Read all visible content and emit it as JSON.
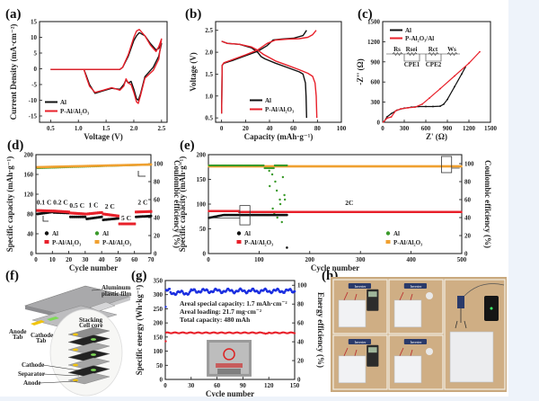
{
  "figure": {
    "background": "#eef3fa",
    "colors": {
      "al": "#111111",
      "pal": "#e8202a",
      "al_ce": "#3a9a2a",
      "pal_ce": "#f0a030",
      "energy": "#1a2ee0",
      "energy_eff": "#1a2ee0"
    }
  },
  "chart_data": [
    {
      "id": "a",
      "panel_label": "(a)",
      "type": "line",
      "xlabel": "Voltage (V)",
      "ylabel": "Current Density (mA·cm⁻²)",
      "xlim": [
        0.3,
        2.6
      ],
      "ylim": [
        -17,
        15
      ],
      "xticks": [
        0.5,
        1.0,
        1.5,
        2.0,
        2.5
      ],
      "yticks": [
        -15,
        -10,
        -5,
        0,
        5,
        10,
        15
      ],
      "xtick_labels": [
        "0.5",
        "1.0",
        "1.5",
        "2.0",
        "2.5"
      ],
      "ytick_labels": [
        "-15",
        "-10",
        "-5",
        "0",
        "5",
        "10",
        "15"
      ],
      "legend": [
        "Al",
        "P-Al/Al₂O₃"
      ],
      "legend_position": "bottom-left",
      "series": [
        {
          "name": "Al",
          "x": [
            0.5,
            1.1,
            1.15,
            1.2,
            1.3,
            1.45,
            1.6,
            1.75,
            1.82,
            1.86,
            1.9,
            1.95,
            2.0,
            2.05,
            2.08,
            2.12,
            2.2,
            2.35,
            2.45,
            2.5,
            2.45,
            2.4,
            2.3,
            2.2,
            2.1,
            2.05,
            2.0,
            1.9,
            1.8,
            1.75,
            1.5,
            0.5
          ],
          "y": [
            -0.2,
            -0.2,
            -2.5,
            -5,
            -7.8,
            -7,
            -6.2,
            -6.5,
            -5,
            -3.5,
            -4.5,
            -4,
            -6.5,
            -9.5,
            -10,
            -8,
            -2.5,
            0.5,
            4,
            8,
            6.5,
            6,
            8,
            10.5,
            11.5,
            10.5,
            9,
            4,
            0.5,
            -0.2,
            -0.2,
            -0.2
          ]
        },
        {
          "name": "P-Al/Al₂O₃",
          "x": [
            0.5,
            1.1,
            1.15,
            1.2,
            1.3,
            1.45,
            1.6,
            1.75,
            1.82,
            1.86,
            1.9,
            1.95,
            2.0,
            2.05,
            2.08,
            2.12,
            2.2,
            2.35,
            2.45,
            2.5,
            2.45,
            2.4,
            2.3,
            2.2,
            2.1,
            2.05,
            2.0,
            1.9,
            1.8,
            1.75,
            1.5,
            0.5
          ],
          "y": [
            -0.2,
            -0.2,
            -3,
            -5.5,
            -7.5,
            -6.8,
            -6,
            -6.8,
            -5.5,
            -3.2,
            -4.5,
            -5,
            -7.5,
            -10.5,
            -11,
            -8.5,
            -3,
            -0.5,
            3,
            9.5,
            7,
            5.5,
            7.5,
            10.5,
            12.5,
            12,
            10,
            4.5,
            0.5,
            -0.2,
            -0.2,
            -0.2
          ]
        }
      ]
    },
    {
      "id": "b",
      "panel_label": "(b)",
      "type": "line",
      "xlabel": "Capacity (mAh·g⁻¹)",
      "ylabel": "Voltage (V)",
      "xlim": [
        -5,
        100
      ],
      "ylim": [
        0.4,
        2.7
      ],
      "xticks": [
        0,
        20,
        40,
        60,
        80,
        100
      ],
      "yticks": [
        0.5,
        1.0,
        1.5,
        2.0,
        2.5
      ],
      "xtick_labels": [
        "0",
        "20",
        "40",
        "60",
        "80",
        "100"
      ],
      "ytick_labels": [
        "0.5",
        "1.0",
        "1.5",
        "2.0",
        "2.5"
      ],
      "legend": [
        "Al",
        "P-Al/Al₂O₃"
      ],
      "legend_position": "bottom-left",
      "series": [
        {
          "name": "Al (discharge)",
          "x": [
            0,
            5,
            15,
            25,
            30,
            33,
            36,
            45,
            55,
            65,
            68,
            70,
            70.5,
            71
          ],
          "y": [
            2.25,
            2.2,
            2.18,
            2.1,
            2.0,
            1.9,
            1.85,
            1.75,
            1.65,
            1.55,
            1.5,
            1.3,
            1.0,
            0.5
          ]
        },
        {
          "name": "Al (charge)",
          "x": [
            0,
            0.5,
            2,
            10,
            20,
            30,
            38,
            43,
            50,
            60,
            68,
            71
          ],
          "y": [
            0.6,
            1.7,
            1.75,
            1.82,
            1.92,
            2.02,
            2.15,
            2.28,
            2.3,
            2.32,
            2.38,
            2.5
          ]
        },
        {
          "name": "P-Al/Al₂O₃ (discharge)",
          "x": [
            0,
            5,
            15,
            25,
            30,
            35,
            45,
            55,
            65,
            72,
            76,
            78,
            79,
            79.5
          ],
          "y": [
            2.25,
            2.2,
            2.18,
            2.12,
            2.05,
            1.95,
            1.8,
            1.7,
            1.6,
            1.52,
            1.45,
            1.3,
            1.0,
            0.5
          ]
        },
        {
          "name": "P-Al/Al₂O₃ (charge)",
          "x": [
            0,
            0.5,
            2,
            10,
            20,
            30,
            38,
            45,
            55,
            65,
            72,
            76,
            79
          ],
          "y": [
            0.6,
            1.7,
            1.76,
            1.84,
            1.94,
            2.05,
            2.2,
            2.28,
            2.3,
            2.31,
            2.34,
            2.4,
            2.5
          ]
        }
      ]
    },
    {
      "id": "c",
      "panel_label": "(c)",
      "type": "line",
      "xlabel": "Z' (Ω)",
      "ylabel": "-Z'' (Ω)",
      "xlim": [
        0,
        1500
      ],
      "ylim": [
        0,
        1500
      ],
      "xticks": [
        0,
        300,
        600,
        900,
        1200,
        1500
      ],
      "yticks": [
        0,
        300,
        600,
        900,
        1200,
        1500
      ],
      "xtick_labels": [
        "0",
        "300",
        "600",
        "900",
        "1200",
        "1500"
      ],
      "ytick_labels": [
        "0",
        "300",
        "600",
        "900",
        "1200",
        "1500"
      ],
      "legend": [
        "Al",
        "P-Al₂O₃/Al"
      ],
      "legend_position": "top-left",
      "circuit_labels": [
        "Rs",
        "Rsei",
        "Rct",
        "Ws",
        "CPE1",
        "CPE2"
      ],
      "series": [
        {
          "name": "Al",
          "x": [
            20,
            60,
            120,
            200,
            300,
            400,
            500,
            600,
            700,
            800,
            850,
            900,
            1000,
            1100,
            1150
          ],
          "y": [
            10,
            80,
            130,
            180,
            210,
            225,
            235,
            235,
            235,
            240,
            270,
            340,
            530,
            720,
            820
          ]
        },
        {
          "name": "P-Al₂O₃/Al",
          "x": [
            10,
            60,
            120,
            180,
            250,
            350,
            450,
            550,
            650,
            800,
            1000,
            1200,
            1350
          ],
          "y": [
            5,
            60,
            80,
            170,
            200,
            215,
            225,
            270,
            360,
            500,
            690,
            880,
            1050
          ]
        }
      ]
    },
    {
      "id": "d",
      "panel_label": "(d)",
      "type": "scatter",
      "xlabel": "Cycle number",
      "ylabel": "Specific capacity (mAh·g⁻¹)",
      "y2label": "Coulombic efficiency (%)",
      "xlim": [
        0,
        70
      ],
      "ylim": [
        0,
        200
      ],
      "y2lim": [
        0,
        110
      ],
      "xticks": [
        0,
        10,
        20,
        30,
        40,
        50,
        60,
        70
      ],
      "yticks": [
        0,
        40,
        80,
        120,
        160,
        200
      ],
      "y2ticks": [
        0,
        20,
        40,
        60,
        80,
        100
      ],
      "xtick_labels": [
        "0",
        "10",
        "20",
        "30",
        "40",
        "50",
        "60",
        "70"
      ],
      "ytick_labels": [
        "0",
        "40",
        "80",
        "120",
        "160",
        "200"
      ],
      "y2tick_labels": [
        "0",
        "20",
        "40",
        "60",
        "80",
        "100"
      ],
      "legend": [
        "Al",
        "P-Al/Al₂O₃",
        "Al",
        "P-Al/Al₂O₃"
      ],
      "legend_position": "bottom",
      "rate_labels": [
        {
          "text": "0.1 C",
          "cycle": 5
        },
        {
          "text": "0.2 C",
          "cycle": 15
        },
        {
          "text": "0.5 C",
          "cycle": 25
        },
        {
          "text": "1 C",
          "cycle": 35
        },
        {
          "text": "2 C",
          "cycle": 45
        },
        {
          "text": "5 C",
          "cycle": 55
        },
        {
          "text": "2 C",
          "cycle": 65
        }
      ],
      "series": [
        {
          "name": "Al capacity",
          "axis": "left",
          "segments": [
            [
              1,
              10,
              80,
              84
            ],
            [
              11,
              20,
              83,
              82
            ],
            [
              21,
              30,
              74,
              74
            ],
            [
              31,
              40,
              70,
              74
            ],
            [
              41,
              50,
              68,
              71
            ],
            [
              51,
              60,
              60,
              60
            ],
            [
              61,
              70,
              74,
              76
            ]
          ]
        },
        {
          "name": "P-Al/Al₂O₃ capacity",
          "axis": "left",
          "segments": [
            [
              1,
              10,
              87,
              86
            ],
            [
              11,
              20,
              86,
              84
            ],
            [
              21,
              30,
              82,
              80
            ],
            [
              31,
              40,
              80,
              83
            ],
            [
              41,
              50,
              80,
              76
            ],
            [
              51,
              60,
              60,
              60
            ],
            [
              61,
              70,
              84,
              85
            ]
          ]
        },
        {
          "name": "Al CE",
          "axis": "right",
          "start": 95,
          "end": 99
        },
        {
          "name": "P-Al/Al₂O₃ CE",
          "axis": "right",
          "start": 96,
          "end": 99
        }
      ]
    },
    {
      "id": "e",
      "panel_label": "(e)",
      "type": "scatter",
      "xlabel": "Cycle number",
      "ylabel": "Specific capacity (mAh·g⁻¹)",
      "y2label": "Coulombic efficiency (%)",
      "xlim": [
        0,
        500
      ],
      "ylim": [
        0,
        200
      ],
      "y2lim": [
        0,
        110
      ],
      "xticks": [
        0,
        100,
        200,
        300,
        400,
        500
      ],
      "yticks": [
        0,
        50,
        100,
        150,
        200
      ],
      "y2ticks": [
        0,
        20,
        40,
        60,
        80,
        100
      ],
      "xtick_labels": [
        "0",
        "100",
        "200",
        "300",
        "400",
        "500"
      ],
      "ytick_labels": [
        "0",
        "50",
        "100",
        "150",
        "200"
      ],
      "y2tick_labels": [
        "0",
        "20",
        "40",
        "60",
        "80",
        "100"
      ],
      "legend": [
        "Al",
        "P-Al/Al₂O₃",
        "Al",
        "P-Al/Al₂O₃"
      ],
      "legend_position": "bottom",
      "annotation": "2C",
      "series": [
        {
          "name": "Al capacity",
          "axis": "left",
          "x_end": 155,
          "start": 72,
          "plateau": 78,
          "outlier": [
            155,
            12
          ]
        },
        {
          "name": "P-Al/Al₂O₃ capacity",
          "axis": "left",
          "x_end": 500,
          "start": 84,
          "plateau": 84
        },
        {
          "name": "Al CE",
          "axis": "right",
          "x_end": 155,
          "value": 98,
          "scatter_cycles": [
            120,
            125,
            130,
            135,
            140,
            145,
            150
          ],
          "scatter_values": [
            92,
            88,
            80,
            70,
            60,
            85,
            65,
            75,
            50,
            45,
            40,
            55,
            35,
            60
          ]
        },
        {
          "name": "P-Al/Al₂O₃ CE",
          "axis": "right",
          "x_end": 500,
          "value": 97
        }
      ]
    },
    {
      "id": "g",
      "panel_label": "(g)",
      "type": "scatter",
      "xlabel": "Cycle number",
      "ylabel": "Specific energy (Wh·kg⁻¹)",
      "y2label": "Energy efficiency (%)",
      "xlim": [
        0,
        150
      ],
      "ylim": [
        0,
        350
      ],
      "y2lim": [
        0,
        105
      ],
      "xticks": [
        0,
        30,
        60,
        90,
        120,
        150
      ],
      "yticks": [
        0,
        50,
        100,
        150,
        200,
        250,
        300,
        350
      ],
      "y2ticks": [
        0,
        20,
        40,
        60,
        80,
        100
      ],
      "xtick_labels": [
        "0",
        "30",
        "60",
        "90",
        "120",
        "150"
      ],
      "ytick_labels": [
        "0",
        "50",
        "100",
        "150",
        "200",
        "250",
        "300",
        "350"
      ],
      "y2tick_labels": [
        "0",
        "20",
        "40",
        "60",
        "80",
        "100"
      ],
      "annotations": [
        "Areal special capacity: 1.7 mAh·cm⁻²",
        "Areal loading: 21.7 mg·cm⁻²",
        "Total capacity: 480 mAh"
      ],
      "series": [
        {
          "name": "Specific energy",
          "axis": "left",
          "first": 135,
          "value": 165
        },
        {
          "name": "Energy efficiency",
          "axis": "right",
          "first": 77,
          "value": 94
        }
      ]
    }
  ],
  "panels": {
    "a_label": "(a)",
    "b_label": "(b)",
    "c_label": "(c)",
    "d_label": "(d)",
    "e_label": "(e)",
    "f_label": "(f)",
    "g_label": "(g)",
    "h_label": "(h)",
    "f": {
      "aluminum_film": "Aluminum",
      "aluminum_film2": "plastic film",
      "anode_tab": "Anode",
      "anode_tab2": "Tab",
      "cathode_tab": "Cathode",
      "cathode_tab2": "Tab",
      "stacking": "Stacking",
      "stacking2": "Cell core",
      "cathode": "Cathode",
      "separator": "Separator",
      "anode": "Anode"
    },
    "h": {
      "photo_labels": [
        "Inverter",
        "Inverter",
        "Inverter"
      ]
    }
  }
}
